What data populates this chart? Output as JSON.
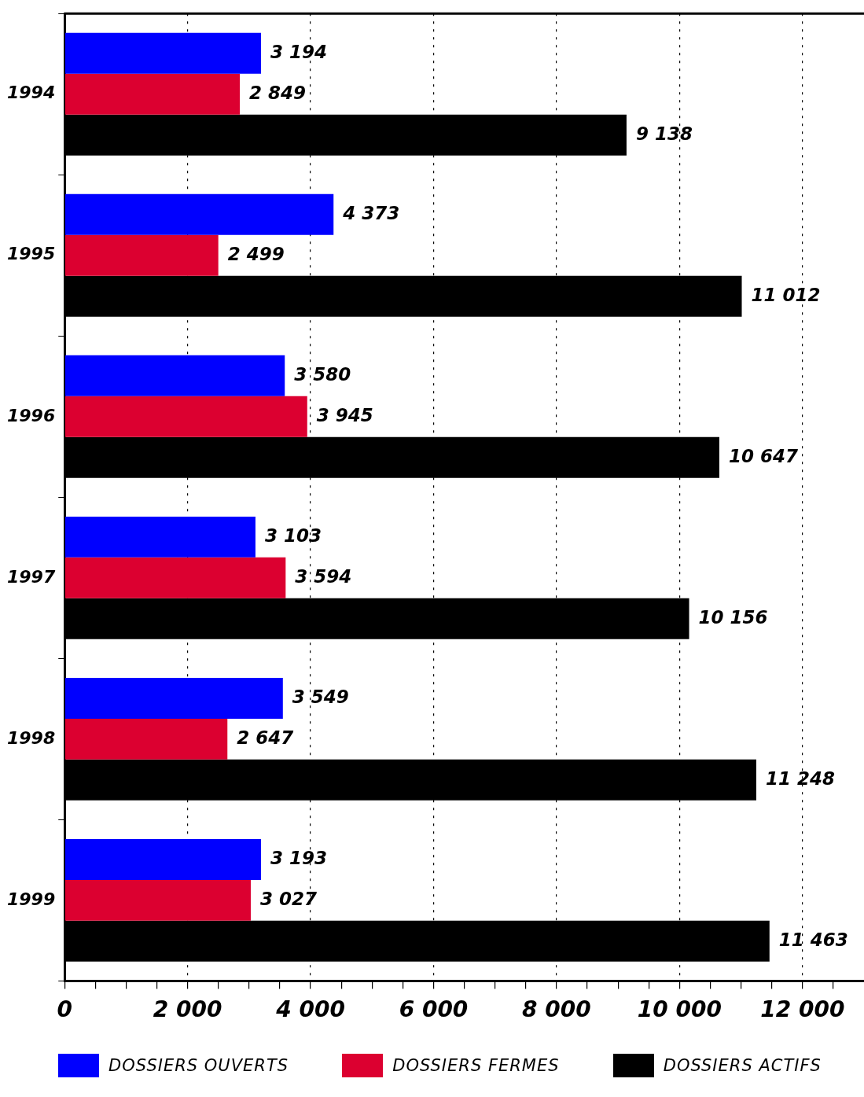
{
  "chart_data": {
    "type": "bar",
    "orientation": "horizontal",
    "categories": [
      "1994",
      "1995",
      "1996",
      "1997",
      "1998",
      "1999"
    ],
    "series": [
      {
        "name": "DOSSIERS OUVERTS",
        "color": "#0000ff",
        "values": [
          3194,
          4373,
          3580,
          3103,
          3549,
          3193
        ],
        "value_labels": [
          "3 194",
          "4 373",
          "3 580",
          "3 103",
          "3 549",
          "3 193"
        ]
      },
      {
        "name": "DOSSIERS FERMES",
        "color": "#dc0030",
        "values": [
          2849,
          2499,
          3945,
          3594,
          2647,
          3027
        ],
        "value_labels": [
          "2 849",
          "2 499",
          "3 945",
          "3 594",
          "2 647",
          "3 027"
        ]
      },
      {
        "name": "DOSSIERS ACTIFS",
        "color": "#000000",
        "values": [
          9138,
          11012,
          10647,
          10156,
          11248,
          11463
        ],
        "value_labels": [
          "9 138",
          "11 012",
          "10 647",
          "10 156",
          "11 248",
          "11 463"
        ]
      }
    ],
    "xlim": [
      0,
      13000
    ],
    "xticks": [
      0,
      {
        "value": 500,
        "label": null
      },
      {
        "value": 1000,
        "label": null
      },
      {
        "value": 1500,
        "label": null
      },
      {
        "value": 2000,
        "label": "2 000"
      },
      {
        "value": 2500,
        "label": null
      },
      {
        "value": 3000,
        "label": null
      },
      {
        "value": 3500,
        "label": null
      },
      {
        "value": 4000,
        "label": "4 000"
      },
      {
        "value": 4500,
        "label": null
      },
      {
        "value": 5000,
        "label": null
      },
      {
        "value": 5500,
        "label": null
      },
      {
        "value": 6000,
        "label": "6 000"
      },
      {
        "value": 6500,
        "label": null
      },
      {
        "value": 7000,
        "label": null
      },
      {
        "value": 7500,
        "label": null
      },
      {
        "value": 8000,
        "label": "8 000"
      },
      {
        "value": 8500,
        "label": null
      },
      {
        "value": 9000,
        "label": null
      },
      {
        "value": 9500,
        "label": null
      },
      {
        "value": 10000,
        "label": "10 000"
      },
      {
        "value": 10500,
        "label": null
      },
      {
        "value": 11000,
        "label": null
      },
      {
        "value": 11500,
        "label": null
      },
      {
        "value": 12000,
        "label": "12 000"
      },
      {
        "value": 12500,
        "label": null
      }
    ],
    "grid": "x",
    "legend": "bottom"
  }
}
